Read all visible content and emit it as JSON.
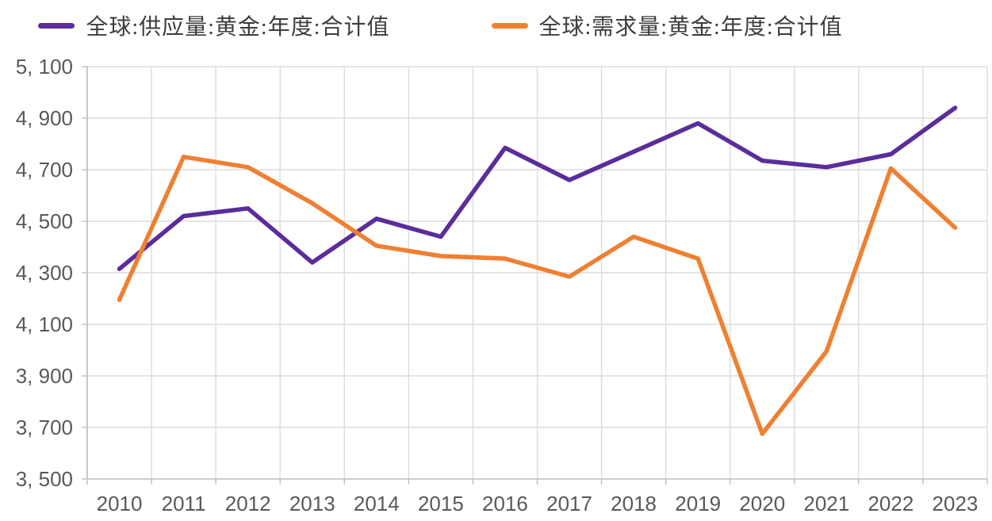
{
  "chart_data": {
    "type": "line",
    "title": "",
    "categories": [
      "2010",
      "2011",
      "2012",
      "2013",
      "2014",
      "2015",
      "2016",
      "2017",
      "2018",
      "2019",
      "2020",
      "2021",
      "2022",
      "2023"
    ],
    "series": [
      {
        "name": "全球:供应量:黄金:年度:合计值",
        "color": "#5B2D9B",
        "values": [
          4315,
          4520,
          4550,
          4340,
          4510,
          4440,
          4785,
          4660,
          4770,
          4880,
          4735,
          4710,
          4760,
          4940
        ]
      },
      {
        "name": "全球:需求量:黄金:年度:合计值",
        "color": "#EF8032",
        "values": [
          4195,
          4750,
          4710,
          4570,
          4405,
          4365,
          4355,
          4285,
          4440,
          4355,
          3675,
          3995,
          4705,
          4475
        ]
      }
    ],
    "ylim": [
      3500,
      5100
    ],
    "ytick_step": 200,
    "ytick_labels": [
      "3, 500",
      "3, 700",
      "3, 900",
      "4, 100",
      "4, 300",
      "4, 500",
      "4, 700",
      "4, 900",
      "5, 100"
    ],
    "xlabel": "",
    "ylabel": "",
    "grid": true,
    "legend_position": "top"
  },
  "style": {
    "grid_color": "#DCDCDC",
    "axis_color": "#BFBFBF",
    "tick_label_color": "#595959",
    "background": "#FFFFFF"
  }
}
